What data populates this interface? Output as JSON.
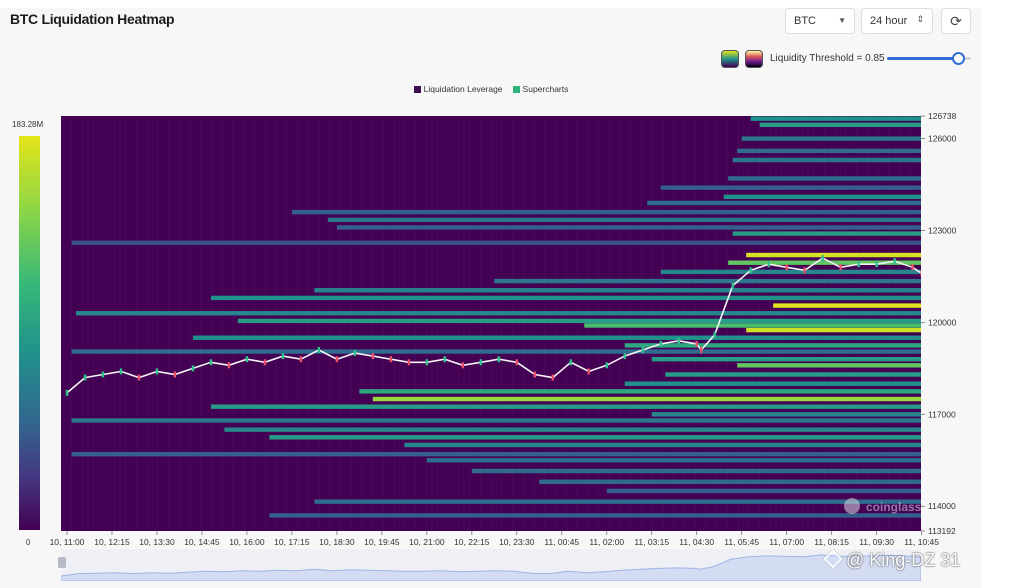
{
  "header": {
    "title": "BTC Liquidation Heatmap",
    "symbol_select": "BTC",
    "range_select": "24 hour",
    "refresh_icon": "refresh-icon"
  },
  "controls": {
    "threshold_label": "Liquidity Threshold = 0.85",
    "threshold_value": 0.85,
    "palette_icons": [
      "viridis-palette-icon",
      "magma-palette-icon"
    ]
  },
  "legend": {
    "items": [
      {
        "label": "Liquidation Leverage",
        "color": "#3b0f50"
      },
      {
        "label": "Supercharts",
        "color": "#2fb47c"
      }
    ]
  },
  "colorbar": {
    "max_label": "183.28M",
    "min_label": "0",
    "colors": [
      "#e5e41a",
      "#8fd744",
      "#35b779",
      "#21918c",
      "#31688e",
      "#443983",
      "#440154"
    ]
  },
  "watermark": {
    "brand": "coinglass",
    "user": "@ King-DZ 31"
  },
  "chart_data": {
    "type": "heatmap",
    "title": "BTC Liquidation Heatmap",
    "xlabel": "",
    "ylabel": "",
    "ylim": [
      113192,
      126738
    ],
    "x_tick_labels": [
      "10, 11:00",
      "10, 12:15",
      "10, 13:30",
      "10, 14:45",
      "10, 16:00",
      "10, 17:15",
      "10, 18:30",
      "10, 19:45",
      "10, 21:00",
      "10, 22:15",
      "10, 23:30",
      "11, 00:45",
      "11, 02:00",
      "11, 03:15",
      "11, 04:30",
      "11, 05:45",
      "11, 07:00",
      "11, 08:15",
      "11, 09:30",
      "11, 10:45"
    ],
    "y_ticks": [
      {
        "value": 126738,
        "label": "126738"
      },
      {
        "value": 126000,
        "label": "126000"
      },
      {
        "value": 123000,
        "label": "123000"
      },
      {
        "value": 120000,
        "label": "120000"
      },
      {
        "value": 117000,
        "label": "117000"
      },
      {
        "value": 114000,
        "label": "114000"
      },
      {
        "value": 113192,
        "label": "113192"
      }
    ],
    "color_scale": {
      "min": 0,
      "max": 183.28,
      "unit": "M"
    },
    "liquidation_bands": [
      {
        "price": 126650,
        "start": 15.2,
        "intensity": 0.5
      },
      {
        "price": 126450,
        "start": 15.4,
        "intensity": 0.55
      },
      {
        "price": 126000,
        "start": 15.0,
        "intensity": 0.4
      },
      {
        "price": 125600,
        "start": 14.9,
        "intensity": 0.35
      },
      {
        "price": 125300,
        "start": 14.8,
        "intensity": 0.4
      },
      {
        "price": 124700,
        "start": 14.7,
        "intensity": 0.35
      },
      {
        "price": 124400,
        "start": 13.2,
        "intensity": 0.3
      },
      {
        "price": 124100,
        "start": 14.6,
        "intensity": 0.5
      },
      {
        "price": 123900,
        "start": 12.9,
        "intensity": 0.35
      },
      {
        "price": 123600,
        "start": 5.0,
        "intensity": 0.3
      },
      {
        "price": 123350,
        "start": 5.8,
        "intensity": 0.4
      },
      {
        "price": 123100,
        "start": 6.0,
        "intensity": 0.3
      },
      {
        "price": 122900,
        "start": 14.8,
        "intensity": 0.55
      },
      {
        "price": 122600,
        "start": 0.1,
        "intensity": 0.25
      },
      {
        "price": 122200,
        "start": 15.1,
        "intensity": 0.97
      },
      {
        "price": 121950,
        "start": 14.7,
        "intensity": 0.75
      },
      {
        "price": 121650,
        "start": 13.2,
        "intensity": 0.45
      },
      {
        "price": 121350,
        "start": 9.5,
        "intensity": 0.4
      },
      {
        "price": 121050,
        "start": 5.5,
        "intensity": 0.45
      },
      {
        "price": 120800,
        "start": 3.2,
        "intensity": 0.5
      },
      {
        "price": 120550,
        "start": 15.7,
        "intensity": 0.99
      },
      {
        "price": 120300,
        "start": 0.2,
        "intensity": 0.45
      },
      {
        "price": 120050,
        "start": 3.8,
        "intensity": 0.55
      },
      {
        "price": 119900,
        "start": 11.5,
        "intensity": 0.7
      },
      {
        "price": 119750,
        "start": 15.1,
        "intensity": 0.95
      },
      {
        "price": 119500,
        "start": 2.8,
        "intensity": 0.5
      },
      {
        "price": 119250,
        "start": 12.4,
        "intensity": 0.6
      },
      {
        "price": 119050,
        "start": 0.1,
        "intensity": 0.35
      },
      {
        "price": 118800,
        "start": 13.0,
        "intensity": 0.55
      },
      {
        "price": 118600,
        "start": 14.9,
        "intensity": 0.75
      },
      {
        "price": 118300,
        "start": 13.3,
        "intensity": 0.55
      },
      {
        "price": 118000,
        "start": 12.4,
        "intensity": 0.5
      },
      {
        "price": 117750,
        "start": 6.5,
        "intensity": 0.6
      },
      {
        "price": 117500,
        "start": 6.8,
        "intensity": 0.85
      },
      {
        "price": 117250,
        "start": 3.2,
        "intensity": 0.55
      },
      {
        "price": 117000,
        "start": 13.0,
        "intensity": 0.45
      },
      {
        "price": 116800,
        "start": 0.1,
        "intensity": 0.4
      },
      {
        "price": 116500,
        "start": 3.5,
        "intensity": 0.45
      },
      {
        "price": 116250,
        "start": 4.5,
        "intensity": 0.55
      },
      {
        "price": 116000,
        "start": 7.5,
        "intensity": 0.45
      },
      {
        "price": 115700,
        "start": 0.1,
        "intensity": 0.3
      },
      {
        "price": 115500,
        "start": 8.0,
        "intensity": 0.35
      },
      {
        "price": 115150,
        "start": 9.0,
        "intensity": 0.35
      },
      {
        "price": 114800,
        "start": 10.5,
        "intensity": 0.35
      },
      {
        "price": 114500,
        "start": 12.0,
        "intensity": 0.3
      },
      {
        "price": 114150,
        "start": 5.5,
        "intensity": 0.35
      },
      {
        "price": 113700,
        "start": 4.5,
        "intensity": 0.3
      }
    ],
    "price_series": {
      "name": "",
      "x": [
        0.0,
        0.4,
        0.8,
        1.2,
        1.6,
        2.0,
        2.4,
        2.8,
        3.2,
        3.6,
        4.0,
        4.4,
        4.8,
        5.2,
        5.6,
        6.0,
        6.4,
        6.8,
        7.2,
        7.6,
        8.0,
        8.4,
        8.8,
        9.2,
        9.6,
        10.0,
        10.4,
        10.8,
        11.2,
        11.6,
        12.0,
        12.4,
        12.8,
        13.2,
        13.6,
        14.0,
        14.1,
        14.4,
        14.8,
        15.2,
        15.6,
        16.0,
        16.4,
        16.8,
        17.2,
        17.6,
        18.0,
        18.4,
        18.8,
        19.0
      ],
      "y": [
        117700,
        118200,
        118300,
        118400,
        118200,
        118400,
        118300,
        118500,
        118700,
        118600,
        118800,
        118700,
        118900,
        118800,
        119100,
        118800,
        119000,
        118900,
        118800,
        118700,
        118700,
        118800,
        118600,
        118700,
        118800,
        118700,
        118300,
        118200,
        118700,
        118400,
        118600,
        118900,
        119100,
        119300,
        119400,
        119300,
        119100,
        119600,
        121200,
        121700,
        121900,
        121800,
        121700,
        122100,
        121800,
        121900,
        121900,
        122000,
        121800,
        121600
      ]
    }
  }
}
